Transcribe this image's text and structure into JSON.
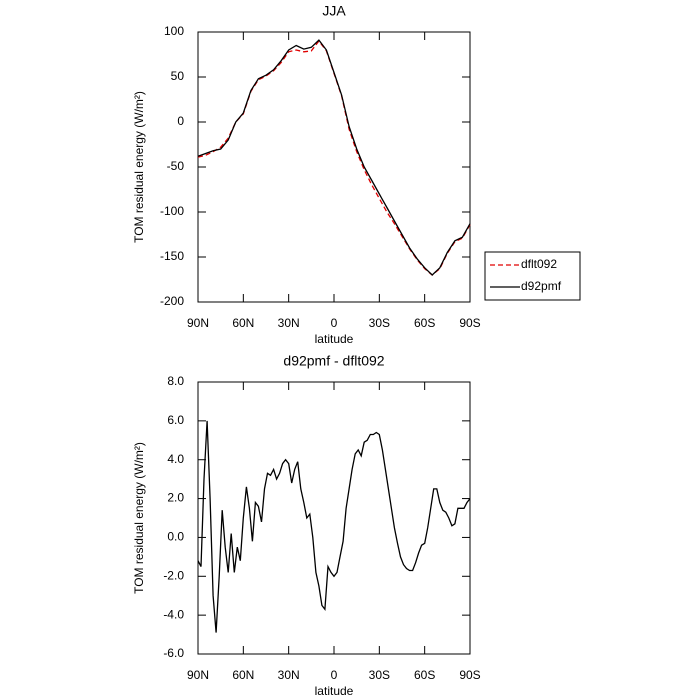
{
  "chart_data": [
    {
      "type": "line",
      "title": "JJA",
      "xlabel": "latitude",
      "ylabel": "TOM residual energy (W/m²)",
      "x": [
        90,
        85,
        80,
        75,
        70,
        65,
        60,
        55,
        50,
        45,
        40,
        35,
        30,
        25,
        20,
        15,
        10,
        5,
        0,
        -5,
        -10,
        -15,
        -20,
        -25,
        -30,
        -35,
        -40,
        -45,
        -50,
        -55,
        -60,
        -65,
        -70,
        -75,
        -80,
        -85,
        -90
      ],
      "series": [
        {
          "name": "dflt092",
          "color": "#e00000",
          "style": "dashed",
          "values": [
            -39,
            -37,
            -33,
            -28,
            -18,
            0,
            9,
            34,
            47,
            51,
            57,
            66,
            78,
            80,
            78,
            79,
            90,
            79,
            54,
            29,
            -8,
            -33,
            -53,
            -70,
            -85,
            -100,
            -113,
            -127,
            -141,
            -153,
            -163,
            -170,
            -163,
            -146,
            -133,
            -129,
            -114
          ]
        },
        {
          "name": "d92pmf",
          "color": "#000000",
          "style": "solid",
          "values": [
            -38,
            -35,
            -32,
            -30,
            -20,
            0,
            10,
            35,
            48,
            52,
            58,
            68,
            80,
            85,
            81,
            83,
            91,
            80,
            55,
            30,
            -5,
            -30,
            -50,
            -65,
            -80,
            -95,
            -110,
            -125,
            -140,
            -152,
            -162,
            -170,
            -162,
            -145,
            -132,
            -128,
            -113
          ]
        }
      ],
      "xlim": [
        90,
        -90
      ],
      "xticks": [
        {
          "value": 90,
          "label": "90N"
        },
        {
          "value": 60,
          "label": "60N"
        },
        {
          "value": 30,
          "label": "30N"
        },
        0,
        {
          "value": -30,
          "label": "30S"
        },
        {
          "value": -60,
          "label": "60S"
        },
        {
          "value": -90,
          "label": "90S"
        }
      ],
      "ylim": [
        -200,
        100
      ],
      "yticks": [
        -200,
        -150,
        -100,
        -50,
        0,
        50,
        100
      ],
      "legend": "right"
    },
    {
      "type": "line",
      "title": "d92pmf - dflt092",
      "xlabel": "latitude",
      "ylabel": "TOM residual energy (W/m²)",
      "x": [
        90,
        88,
        86,
        84,
        82,
        80,
        78,
        76,
        74,
        72,
        70,
        68,
        66,
        64,
        62,
        60,
        58,
        56,
        54,
        52,
        50,
        48,
        46,
        44,
        42,
        40,
        38,
        36,
        34,
        32,
        30,
        28,
        26,
        24,
        22,
        20,
        18,
        16,
        14,
        12,
        10,
        8,
        6,
        4,
        2,
        0,
        -2,
        -4,
        -6,
        -8,
        -10,
        -12,
        -14,
        -16,
        -18,
        -20,
        -22,
        -24,
        -26,
        -28,
        -30,
        -32,
        -34,
        -36,
        -38,
        -40,
        -42,
        -44,
        -46,
        -48,
        -50,
        -52,
        -54,
        -56,
        -58,
        -60,
        -62,
        -64,
        -66,
        -68,
        -70,
        -72,
        -74,
        -76,
        -78,
        -80,
        -82,
        -84,
        -86,
        -88,
        -90
      ],
      "values": [
        -1.2,
        -1.5,
        3.0,
        6.0,
        2.0,
        -3.0,
        -4.9,
        -2.0,
        1.4,
        -0.5,
        -1.8,
        0.2,
        -1.8,
        -0.5,
        -1.2,
        1.0,
        2.6,
        1.5,
        -0.2,
        1.8,
        1.6,
        0.8,
        2.5,
        3.3,
        3.2,
        3.5,
        3.0,
        3.3,
        3.8,
        4.0,
        3.8,
        2.8,
        3.5,
        3.9,
        2.5,
        1.8,
        1.0,
        1.2,
        0.0,
        -1.8,
        -2.5,
        -3.5,
        -3.7,
        -1.5,
        -1.8,
        -2.0,
        -1.8,
        -1.0,
        -0.2,
        1.5,
        2.5,
        3.5,
        4.3,
        4.5,
        4.2,
        4.9,
        5.0,
        5.3,
        5.3,
        5.4,
        5.3,
        4.5,
        3.5,
        2.5,
        1.5,
        0.5,
        -0.3,
        -1.0,
        -1.4,
        -1.6,
        -1.7,
        -1.7,
        -1.3,
        -0.8,
        -0.4,
        -0.3,
        0.5,
        1.5,
        2.5,
        2.5,
        1.8,
        1.4,
        1.3,
        1.0,
        0.6,
        0.7,
        1.5,
        1.5,
        1.5,
        1.8,
        2.0
      ],
      "color": "#000000",
      "style": "solid",
      "xlim": [
        90,
        -90
      ],
      "xticks": [
        {
          "value": 90,
          "label": "90N"
        },
        {
          "value": 60,
          "label": "60N"
        },
        {
          "value": 30,
          "label": "30N"
        },
        0,
        {
          "value": -30,
          "label": "30S"
        },
        {
          "value": -60,
          "label": "60S"
        },
        {
          "value": -90,
          "label": "90S"
        }
      ],
      "ylim": [
        -6,
        8
      ],
      "yticks": [
        {
          "value": -6,
          "label": "-6.0"
        },
        {
          "value": -4,
          "label": "-4.0"
        },
        {
          "value": -2,
          "label": "-2.0"
        },
        {
          "value": 0,
          "label": "0.0"
        },
        {
          "value": 2,
          "label": "2.0"
        },
        {
          "value": 4,
          "label": "4.0"
        },
        {
          "value": 6,
          "label": "6.0"
        },
        {
          "value": 8,
          "label": "8.0"
        }
      ]
    }
  ]
}
